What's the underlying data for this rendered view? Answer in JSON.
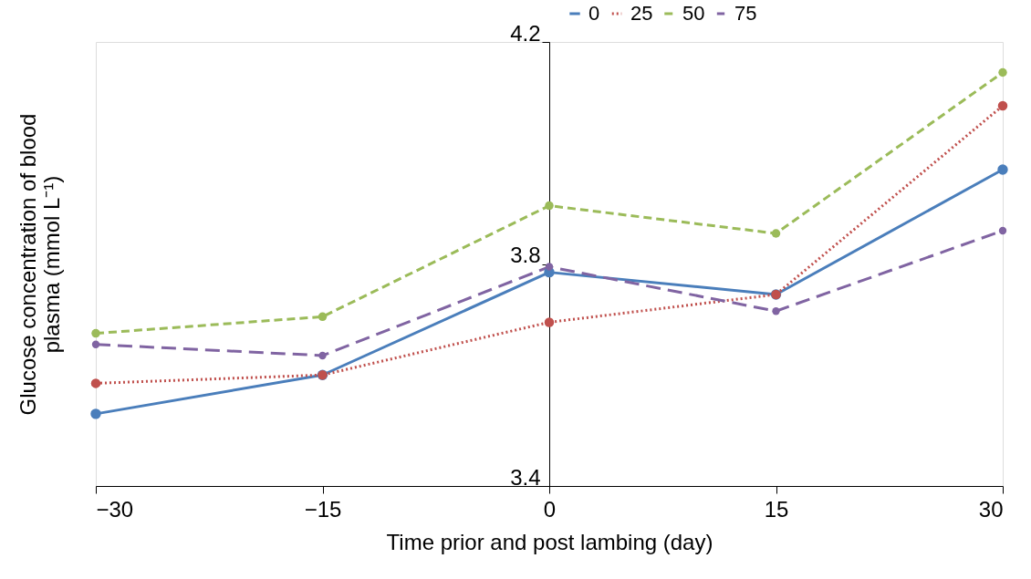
{
  "chart_data": {
    "type": "line",
    "xlabel": "Time prior and post lambing (day)",
    "ylabel": "Glucose concentration of blood plasma (mmol L⁻¹)",
    "x": [
      -30,
      -15,
      0,
      15,
      30
    ],
    "series": [
      {
        "name": "0",
        "color": "#4a7ebb",
        "line_style": "solid",
        "values": [
          3.53,
          3.6,
          3.785,
          3.745,
          3.97
        ]
      },
      {
        "name": "25",
        "color": "#c0504d",
        "line_style": "dotted",
        "values": [
          3.585,
          3.6,
          3.695,
          3.745,
          4.085
        ]
      },
      {
        "name": "50",
        "color": "#9bbb59",
        "line_style": "dashed",
        "values": [
          3.675,
          3.705,
          3.905,
          3.855,
          4.145
        ]
      },
      {
        "name": "75",
        "color": "#8064a2",
        "line_style": "dashed",
        "values": [
          3.655,
          3.635,
          3.795,
          3.715,
          3.86
        ]
      }
    ],
    "xlim": [
      -30,
      30
    ],
    "xticks": [
      -30,
      -15,
      0,
      15,
      30
    ],
    "ylim": [
      3.4,
      4.2
    ],
    "yticks": [
      3.4,
      3.8,
      4.2
    ],
    "grid": false,
    "legend": "top right",
    "marker": "circle"
  }
}
